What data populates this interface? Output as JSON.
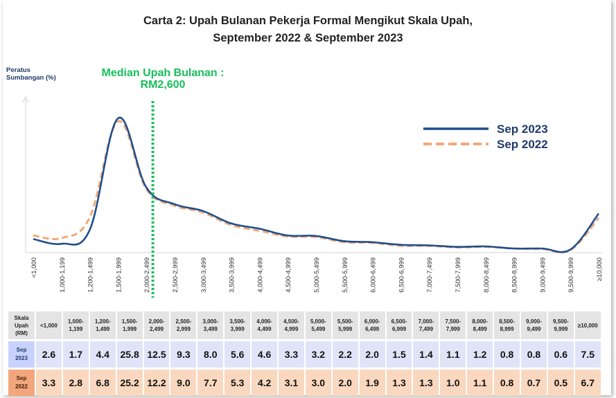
{
  "chart_data": {
    "type": "line",
    "title_line1": "Carta 2: Upah Bulanan Pekerja Formal Mengikut Skala Upah,",
    "title_line2": "September 2022 & September 2023",
    "ylabel_line1": "Peratus",
    "ylabel_line2": "Sumbangan (%)",
    "median_line1": "Median Upah Bulanan :",
    "median_line2": "RM2,600",
    "median_value": 2600,
    "categories": [
      "<1,000",
      "1,000-1,199",
      "1,200-1,499",
      "1,500-1,999",
      "2,000-2,499",
      "2,500-2,999",
      "3,000-3,499",
      "3,500-3,999",
      "4,000-4,499",
      "4,500-4,999",
      "5,000-5,499",
      "5,500-5,999",
      "6,000-6,499",
      "6,500-6,999",
      "7,000-7,499",
      "7,500-7,999",
      "8,000-8,499",
      "8,500-8,999",
      "9,000-9,499",
      "9,500-9,999",
      "≥10,000"
    ],
    "series": [
      {
        "name": "Sep 2023",
        "color": "#1f4e8c",
        "style": "solid",
        "values": [
          2.6,
          1.7,
          4.4,
          25.8,
          12.5,
          9.3,
          8.0,
          5.6,
          4.6,
          3.3,
          3.2,
          2.2,
          2.0,
          1.5,
          1.4,
          1.1,
          1.2,
          0.8,
          0.8,
          0.6,
          7.5
        ]
      },
      {
        "name": "Sep 2022",
        "color": "#f0a878",
        "style": "dashed",
        "values": [
          3.3,
          2.8,
          6.8,
          25.2,
          12.2,
          9.0,
          7.7,
          5.3,
          4.2,
          3.1,
          3.0,
          2.0,
          1.9,
          1.3,
          1.3,
          1.0,
          1.1,
          0.8,
          0.7,
          0.5,
          6.7
        ]
      }
    ],
    "legend_position": "top-right",
    "grid": false
  },
  "table": {
    "header_label_lines": [
      "Skala",
      "Upah",
      "(RM)"
    ],
    "header_cells": [
      [
        "<1,000"
      ],
      [
        "1,000-",
        "1,199"
      ],
      [
        "1,200-",
        "1,499"
      ],
      [
        "1,500-",
        "1,999"
      ],
      [
        "2,000-",
        "2,499"
      ],
      [
        "2,500-",
        "2,999"
      ],
      [
        "3,000-",
        "3,499"
      ],
      [
        "3,500-",
        "3,999"
      ],
      [
        "4,000-",
        "4,499"
      ],
      [
        "4,500-",
        "4,999"
      ],
      [
        "5,000-",
        "5,499"
      ],
      [
        "5,500-",
        "5,999"
      ],
      [
        "6,000-",
        "6,499"
      ],
      [
        "6,500-",
        "6,999"
      ],
      [
        "7,000-",
        "7,499"
      ],
      [
        "7,500-",
        "7,999"
      ],
      [
        "8,000-",
        "8,499"
      ],
      [
        "8,500-",
        "8,999"
      ],
      [
        "9,000-",
        "9,499"
      ],
      [
        "9,500-",
        "9,999"
      ],
      [
        "≥10,000"
      ]
    ],
    "rows": [
      {
        "label_lines": [
          "Sep",
          "2023"
        ],
        "values": [
          "2.6",
          "1.7",
          "4.4",
          "25.8",
          "12.5",
          "9.3",
          "8.0",
          "5.6",
          "4.6",
          "3.3",
          "3.2",
          "2.2",
          "2.0",
          "1.5",
          "1.4",
          "1.1",
          "1.2",
          "0.8",
          "0.8",
          "0.6",
          "7.5"
        ]
      },
      {
        "label_lines": [
          "Sep",
          "2022"
        ],
        "values": [
          "3.3",
          "2.8",
          "6.8",
          "25.2",
          "12.2",
          "9.0",
          "7.7",
          "5.3",
          "4.2",
          "3.1",
          "3.0",
          "2.0",
          "1.9",
          "1.3",
          "1.3",
          "1.0",
          "1.1",
          "0.8",
          "0.7",
          "0.5",
          "6.7"
        ]
      }
    ]
  }
}
